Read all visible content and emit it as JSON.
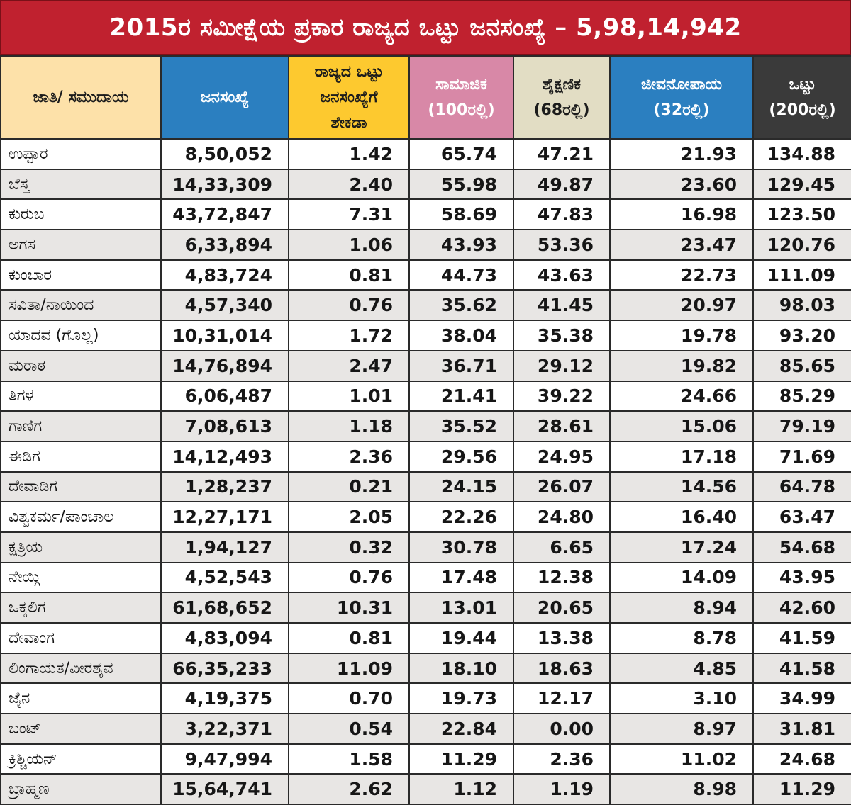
{
  "title": "2015ರ ಸಮೀಕ್ಷೆಯ ಪ್ರಕಾರ ರಾಜ್ಯದ ಒಟ್ಟು ಜನಸಂಖ್ಯೆ – 5,98,14,942",
  "headers": [
    [
      "ಜಾತಿ/ ಸಮುದಾಯ"
    ],
    [
      "ಜನಸಂಖ್ಯೆ"
    ],
    [
      "ರಾಜ್ಯದ ಒಟ್ಟು",
      "ಜನಸಂಖ್ಯೆಗೆ",
      "ಶೇಕಡಾ"
    ],
    [
      "ಸಾಮಾಜಿಕ",
      "(100ರಲ್ಲಿ)"
    ],
    [
      "ಶೈಕ್ಷಣಿಕ",
      "(68ರಲ್ಲಿ)"
    ],
    [
      "ಜೀವನೋಪಾಯ",
      "(32ರಲ್ಲಿ)"
    ],
    [
      "ಒಟ್ಟು",
      "(200ರಲ್ಲಿ)"
    ]
  ],
  "colors": {
    "title_bg": "#c0212f",
    "caste_header": "#fde1a9",
    "population_header": "#2b7fc0",
    "percent_header": "#fdc92f",
    "social_header": "#d888a7",
    "education_header": "#e2ddc4",
    "livelihood_header": "#2b7fc0",
    "total_header": "#3a3a3a",
    "zebra_row": "#e8e6e4"
  },
  "rows": [
    [
      "ಉಪ್ಪಾರ",
      "8,50,052",
      "1.42",
      "65.74",
      "47.21",
      "21.93",
      "134.88"
    ],
    [
      "ಬೆಸ್ತ",
      "14,33,309",
      "2.40",
      "55.98",
      "49.87",
      "23.60",
      "129.45"
    ],
    [
      "ಕುರುಬ",
      "43,72,847",
      "7.31",
      "58.69",
      "47.83",
      "16.98",
      "123.50"
    ],
    [
      "ಅಗಸ",
      "6,33,894",
      "1.06",
      "43.93",
      "53.36",
      "23.47",
      "120.76"
    ],
    [
      "ಕುಂಬಾರ",
      "4,83,724",
      "0.81",
      "44.73",
      "43.63",
      "22.73",
      "111.09"
    ],
    [
      "ಸವಿತಾ/ನಾಯಿಂದ",
      "4,57,340",
      "0.76",
      "35.62",
      "41.45",
      "20.97",
      "98.03"
    ],
    [
      "ಯಾದವ (ಗೊಲ್ಲ)",
      "10,31,014",
      "1.72",
      "38.04",
      "35.38",
      "19.78",
      "93.20"
    ],
    [
      "ಮರಾಠ",
      "14,76,894",
      "2.47",
      "36.71",
      "29.12",
      "19.82",
      "85.65"
    ],
    [
      "ತಿಗಳ",
      "6,06,487",
      "1.01",
      "21.41",
      "39.22",
      "24.66",
      "85.29"
    ],
    [
      "ಗಾಣಿಗ",
      "7,08,613",
      "1.18",
      "35.52",
      "28.61",
      "15.06",
      "79.19"
    ],
    [
      "ಈಡಿಗ",
      "14,12,493",
      "2.36",
      "29.56",
      "24.95",
      "17.18",
      "71.69"
    ],
    [
      "ದೇವಾಡಿಗ",
      "1,28,237",
      "0.21",
      "24.15",
      "26.07",
      "14.56",
      "64.78"
    ],
    [
      "ವಿಶ್ವಕರ್ಮ/ಪಾಂಚಾಲ",
      "12,27,171",
      "2.05",
      "22.26",
      "24.80",
      "16.40",
      "63.47"
    ],
    [
      "ಕ್ಷತ್ರಿಯ",
      "1,94,127",
      "0.32",
      "30.78",
      "6.65",
      "17.24",
      "54.68"
    ],
    [
      "ನೇಯ್ಗಿ",
      "4,52,543",
      "0.76",
      "17.48",
      "12.38",
      "14.09",
      "43.95"
    ],
    [
      "ಒಕ್ಕಲಿಗ",
      "61,68,652",
      "10.31",
      "13.01",
      "20.65",
      "8.94",
      "42.60"
    ],
    [
      "ದೇವಾಂಗ",
      "4,83,094",
      "0.81",
      "19.44",
      "13.38",
      "8.78",
      "41.59"
    ],
    [
      "ಲಿಂಗಾಯತ/ವೀರಶೈವ",
      "66,35,233",
      "11.09",
      "18.10",
      "18.63",
      "4.85",
      "41.58"
    ],
    [
      "ಜೈನ",
      "4,19,375",
      "0.70",
      "19.73",
      "12.17",
      "3.10",
      "34.99"
    ],
    [
      "ಬಂಟ್",
      "3,22,371",
      "0.54",
      "22.84",
      "0.00",
      "8.97",
      "31.81"
    ],
    [
      "ಕ್ರಿಶ್ಚಿಯನ್",
      "9,47,994",
      "1.58",
      "11.29",
      "2.36",
      "11.02",
      "24.68"
    ],
    [
      "ಬ್ರಾಹ್ಮಣ",
      "15,64,741",
      "2.62",
      "1.12",
      "1.19",
      "8.98",
      "11.29"
    ]
  ]
}
